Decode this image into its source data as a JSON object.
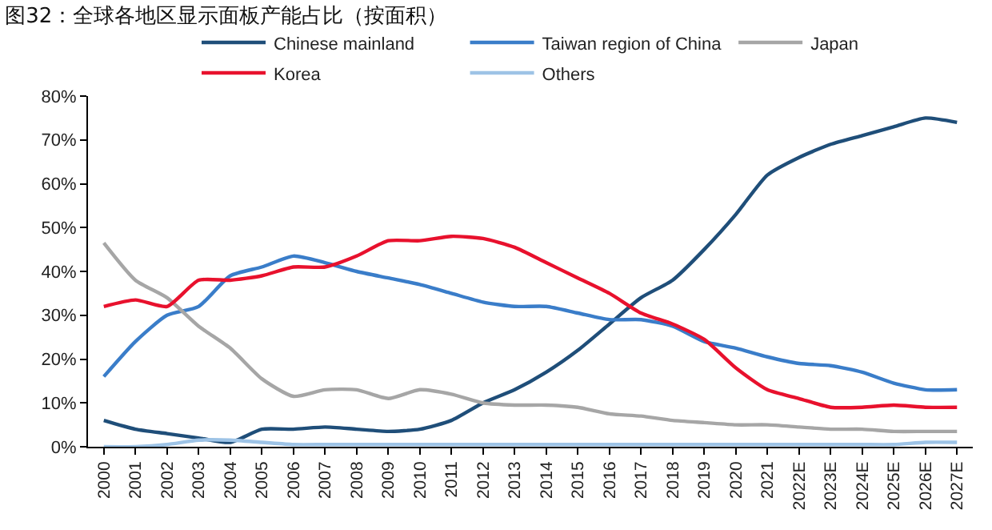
{
  "chart_data": {
    "type": "line",
    "title": "图32：全球各地区显示面板产能占比（按面积）",
    "categories": [
      "2000",
      "2001",
      "2002",
      "2003",
      "2004",
      "2005",
      "2006",
      "2007",
      "2008",
      "2009",
      "2010",
      "2011",
      "2012",
      "2013",
      "2014",
      "2015",
      "2016",
      "2017",
      "2018",
      "2019",
      "2020",
      "2021",
      "2022E",
      "2023E",
      "2024E",
      "2025E",
      "2026E",
      "2027E"
    ],
    "series": [
      {
        "name": "Chinese mainland",
        "color": "#1f4e79",
        "values": [
          6,
          4,
          3,
          2,
          1,
          4,
          4,
          4.5,
          4,
          3.5,
          4,
          6,
          10,
          13,
          17,
          22,
          28,
          34,
          38,
          45,
          53,
          62,
          66,
          69,
          71,
          73,
          75,
          74
        ]
      },
      {
        "name": "Taiwan region of China",
        "color": "#3a7dc9",
        "values": [
          16,
          24,
          30,
          32,
          39,
          41,
          43.5,
          42,
          40,
          38.5,
          37,
          35,
          33,
          32,
          32,
          30.5,
          29,
          29,
          27.5,
          24,
          22.5,
          20.5,
          19,
          18.5,
          17,
          14.5,
          13,
          13
        ]
      },
      {
        "name": "Japan",
        "color": "#a6a6a6",
        "values": [
          46.5,
          38,
          34,
          27.5,
          22.5,
          15.5,
          11.5,
          13,
          13,
          11,
          13,
          12,
          10,
          9.5,
          9.5,
          9,
          7.5,
          7,
          6,
          5.5,
          5,
          5,
          4.5,
          4,
          4,
          3.5,
          3.5,
          3.5
        ]
      },
      {
        "name": "Korea",
        "color": "#e8112d",
        "values": [
          32,
          33.5,
          32,
          38,
          38,
          39,
          41,
          41,
          43.5,
          47,
          47,
          48,
          47.5,
          45.5,
          42,
          38.5,
          35,
          30.5,
          28,
          24.5,
          18,
          13,
          11,
          9,
          9,
          9.5,
          9,
          9
        ]
      },
      {
        "name": "Others",
        "color": "#9dc3e6",
        "values": [
          0,
          0,
          0.5,
          1.5,
          1.5,
          1,
          0.5,
          0.5,
          0.5,
          0.5,
          0.5,
          0.5,
          0.5,
          0.5,
          0.5,
          0.5,
          0.5,
          0.5,
          0.5,
          0.5,
          0.5,
          0.5,
          0.5,
          0.5,
          0.5,
          0.5,
          1,
          1
        ]
      }
    ],
    "ylim": [
      0,
      80
    ],
    "yticks": [
      {
        "value": 0,
        "label": "0%"
      },
      {
        "value": 10,
        "label": "10%"
      },
      {
        "value": 20,
        "label": "20%"
      },
      {
        "value": 30,
        "label": "30%"
      },
      {
        "value": 40,
        "label": "40%"
      },
      {
        "value": 50,
        "label": "50%"
      },
      {
        "value": 60,
        "label": "60%"
      },
      {
        "value": 70,
        "label": "70%"
      },
      {
        "value": 80,
        "label": "80%"
      }
    ],
    "grid": false,
    "legend": "top",
    "marker": "none",
    "line_style": "solid"
  }
}
